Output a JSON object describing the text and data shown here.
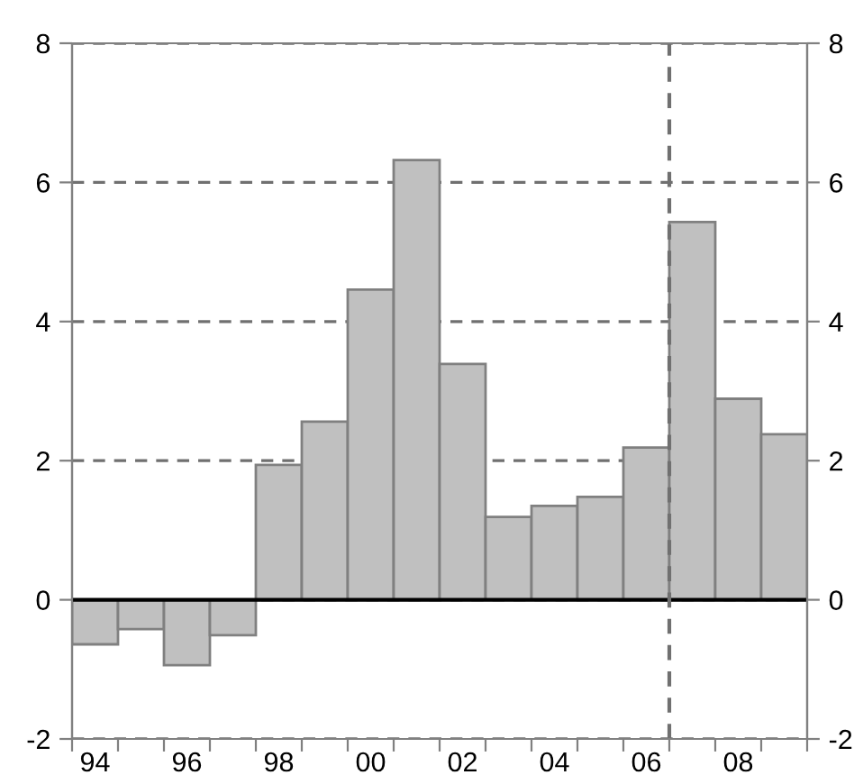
{
  "chart_data": {
    "type": "bar",
    "x": [
      1994,
      1995,
      1996,
      1997,
      1998,
      1999,
      2000,
      2001,
      2002,
      2003,
      2004,
      2005,
      2006,
      2007,
      2008,
      2009
    ],
    "values": [
      -0.64,
      -0.42,
      -0.94,
      -0.51,
      1.94,
      2.56,
      4.46,
      6.32,
      3.39,
      1.19,
      1.35,
      1.48,
      2.19,
      5.43,
      2.89,
      2.38
    ],
    "color": "#c0c0c0",
    "xlim": [
      1993.5,
      2009.5
    ],
    "xticks": [
      {
        "value": 1993.5,
        "label": null
      },
      {
        "value": 1994,
        "label": "94"
      },
      {
        "value": 1994.5,
        "label": null
      },
      {
        "value": 1995.5,
        "label": null
      },
      {
        "value": 1996,
        "label": "96"
      },
      {
        "value": 1996.5,
        "label": null
      },
      {
        "value": 1997.5,
        "label": null
      },
      {
        "value": 1998,
        "label": "98"
      },
      {
        "value": 1998.5,
        "label": null
      },
      {
        "value": 1999.5,
        "label": null
      },
      {
        "value": 2000,
        "label": "00"
      },
      {
        "value": 2000.5,
        "label": null
      },
      {
        "value": 2001.5,
        "label": null
      },
      {
        "value": 2002,
        "label": "02"
      },
      {
        "value": 2002.5,
        "label": null
      },
      {
        "value": 2003.5,
        "label": null
      },
      {
        "value": 2004,
        "label": "04"
      },
      {
        "value": 2004.5,
        "label": null
      },
      {
        "value": 2005.5,
        "label": null
      },
      {
        "value": 2006,
        "label": "06"
      },
      {
        "value": 2006.5,
        "label": null
      },
      {
        "value": 2007.5,
        "label": null
      },
      {
        "value": 2008,
        "label": "08"
      },
      {
        "value": 2008.5,
        "label": null
      },
      {
        "value": 2009.5,
        "label": null
      }
    ],
    "ylim": [
      -2,
      8
    ],
    "yticks": [
      -2,
      0,
      2,
      4,
      6,
      8
    ],
    "y2lim": [
      -2,
      8
    ],
    "y2ticks": [
      -2,
      0,
      2,
      4,
      6,
      8
    ],
    "grid": "y",
    "legend": false,
    "ref_lines": [
      {
        "axis": "y",
        "value": 0,
        "color": "#000000",
        "line_style": "solid"
      },
      {
        "axis": "x",
        "value": 2006.5,
        "color": "#707070",
        "line_style": "dashed"
      }
    ]
  }
}
